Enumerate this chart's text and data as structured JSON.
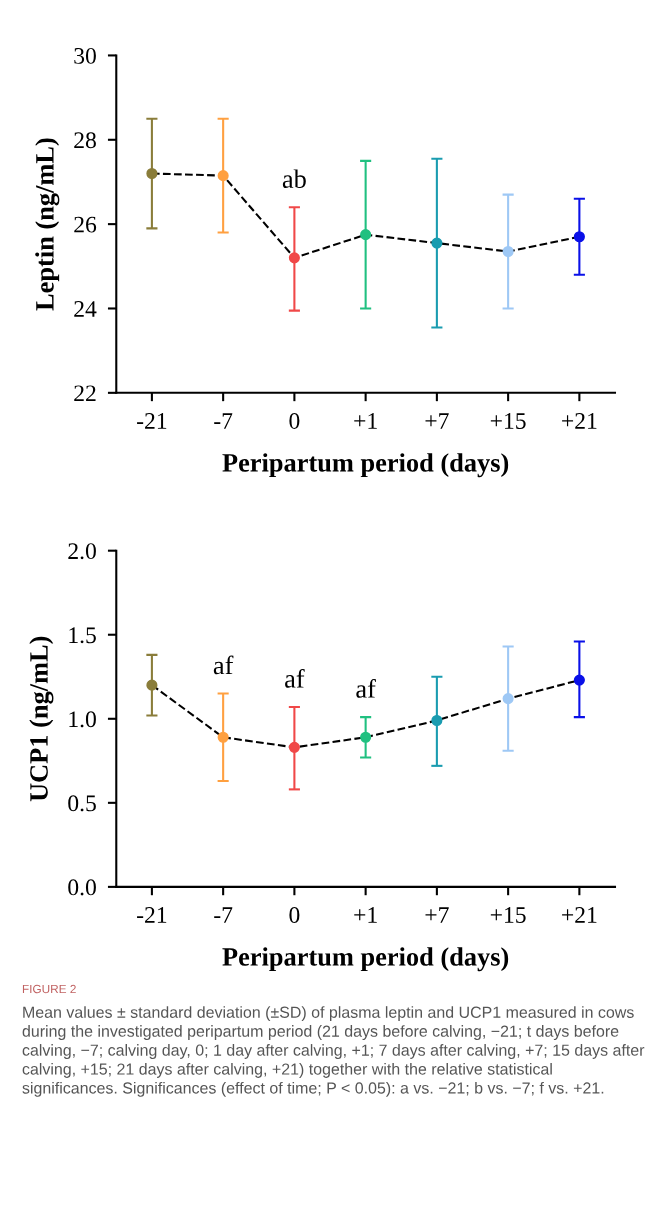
{
  "chart_data": [
    {
      "type": "line",
      "ylabel": "Leptin (ng/mL)",
      "xlabel": "Peripartum period (days)",
      "categories": [
        "-21",
        "-7",
        "0",
        "+1",
        "+7",
        "+15",
        "+21"
      ],
      "series": [
        {
          "color": "#000000",
          "colors": [
            "#8a7d3a",
            "#ffa040",
            "#f04848",
            "#20c080",
            "#1a9cb0",
            "#9ec8f5",
            "#0a10e8"
          ],
          "values": [
            27.2,
            27.15,
            25.2,
            25.75,
            25.55,
            25.35,
            25.7
          ],
          "errors": [
            [
              25.9,
              28.5
            ],
            [
              25.8,
              28.5
            ],
            [
              23.95,
              26.4
            ],
            [
              24.0,
              27.5
            ],
            [
              23.55,
              27.55
            ],
            [
              24.0,
              26.7
            ],
            [
              24.8,
              26.6
            ]
          ]
        }
      ],
      "ylim": [
        22,
        30
      ],
      "yticks": [
        22,
        24,
        26,
        28,
        30
      ],
      "marker": "circle",
      "line_style": "dashed",
      "grid": false,
      "legend": false,
      "annotations": [
        {
          "text": "ab",
          "x": "0",
          "y": 26.4
        }
      ]
    },
    {
      "type": "line",
      "ylabel": "UCP1 (ng/mL)",
      "xlabel": "Peripartum period (days)",
      "categories": [
        "-21",
        "-7",
        "0",
        "+1",
        "+7",
        "+15",
        "+21"
      ],
      "series": [
        {
          "color": "#000000",
          "colors": [
            "#8a7d3a",
            "#ffa040",
            "#f04848",
            "#20c080",
            "#1a9cb0",
            "#9ec8f5",
            "#0a10e8"
          ],
          "values": [
            1.2,
            0.89,
            0.83,
            0.89,
            0.99,
            1.12,
            1.23
          ],
          "errors": [
            [
              1.02,
              1.38
            ],
            [
              0.63,
              1.15
            ],
            [
              0.58,
              1.07
            ],
            [
              0.77,
              1.01
            ],
            [
              0.72,
              1.25
            ],
            [
              0.81,
              1.43
            ],
            [
              1.01,
              1.46
            ]
          ]
        }
      ],
      "ylim": [
        0.0,
        2.0
      ],
      "yticks": [
        {
          "value": 0,
          "label": "0.0"
        },
        0.5,
        {
          "value": 1,
          "label": "1.0"
        },
        1.5,
        {
          "value": 2,
          "label": "2.0"
        }
      ],
      "marker": "circle",
      "line_style": "dashed",
      "grid": false,
      "legend": false,
      "annotations": [
        {
          "text": "af",
          "x": "-7",
          "y": 1.15
        },
        {
          "text": "af",
          "x": "0",
          "y": 1.07
        },
        {
          "text": "af",
          "x": "+1",
          "y": 1.01
        },
        "FIGURE 2",
        "Mean values ± standard deviation (±SD) of plasma leptin and UCP1 measured in cows during the investigated peripartum period (21 days before calving, −21; t days before calving, −7; calving day, 0; 1 day after calving, +1; 7 days after calving, +7; 15 days after calving, +15; 21 days after calving, +21) together with the relative statistical significances. Significances (effect of time; P < 0.05): a vs. −21; b vs. −7; f vs. +21."
      ]
    }
  ]
}
